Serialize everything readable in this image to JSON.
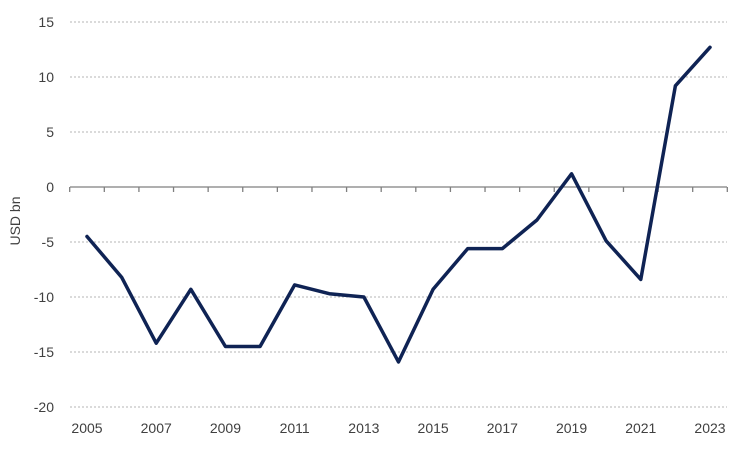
{
  "chart_data": {
    "type": "line",
    "title": "",
    "xlabel": "",
    "ylabel": "USD bn",
    "x": [
      2005,
      2006,
      2007,
      2008,
      2009,
      2010,
      2011,
      2012,
      2013,
      2014,
      2015,
      2016,
      2017,
      2018,
      2019,
      2020,
      2021,
      2022,
      2023
    ],
    "x_tick_labels": [
      "2005",
      "2007",
      "2009",
      "2011",
      "2013",
      "2015",
      "2017",
      "2019",
      "2021",
      "2023"
    ],
    "y_tick_labels": [
      "15",
      "10",
      "5",
      "0",
      "-5",
      "-10",
      "-15",
      "-20"
    ],
    "y_ticks": [
      15,
      10,
      5,
      0,
      -5,
      -10,
      -15,
      -20
    ],
    "ylim": [
      -20,
      15
    ],
    "xlim": [
      2005,
      2023
    ],
    "grid": "horizontal-dotted",
    "legend": "none",
    "series": [
      {
        "color": "#0f2354",
        "values": [
          -4.5,
          -8.2,
          -14.2,
          -9.3,
          -14.5,
          -14.5,
          -8.9,
          -9.7,
          -10.0,
          -15.9,
          -9.3,
          -5.6,
          -5.6,
          -3.0,
          1.2,
          -4.9,
          -8.4,
          9.2,
          12.7
        ]
      }
    ]
  }
}
